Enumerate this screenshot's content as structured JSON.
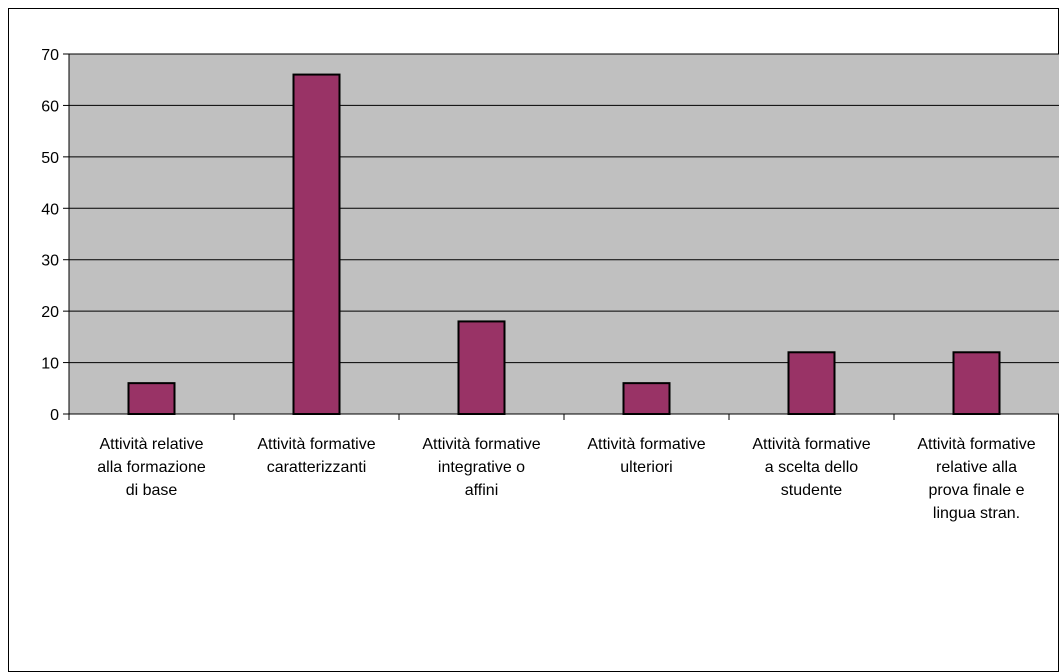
{
  "chart_data": {
    "type": "bar",
    "categories": [
      [
        "Attività relative",
        "alla formazione",
        "di base"
      ],
      [
        "Attività formative",
        "caratterizzanti"
      ],
      [
        "Attività formative",
        "integrative o",
        "affini"
      ],
      [
        "Attività formative",
        "ulteriori"
      ],
      [
        "Attività formative",
        "a scelta dello",
        "studente"
      ],
      [
        "Attività formative",
        "relative alla",
        "prova finale e",
        "lingua stran."
      ]
    ],
    "values": [
      6,
      66,
      18,
      6,
      12,
      12
    ],
    "ylim": [
      0,
      70
    ],
    "yticks": [
      0,
      10,
      20,
      30,
      40,
      50,
      60,
      70
    ],
    "title": "",
    "xlabel": "",
    "ylabel": "",
    "grid": true,
    "legend": false,
    "colors": {
      "bar": "#993366",
      "plot_background": "#c0c0c0",
      "gridline": "#000000"
    }
  }
}
